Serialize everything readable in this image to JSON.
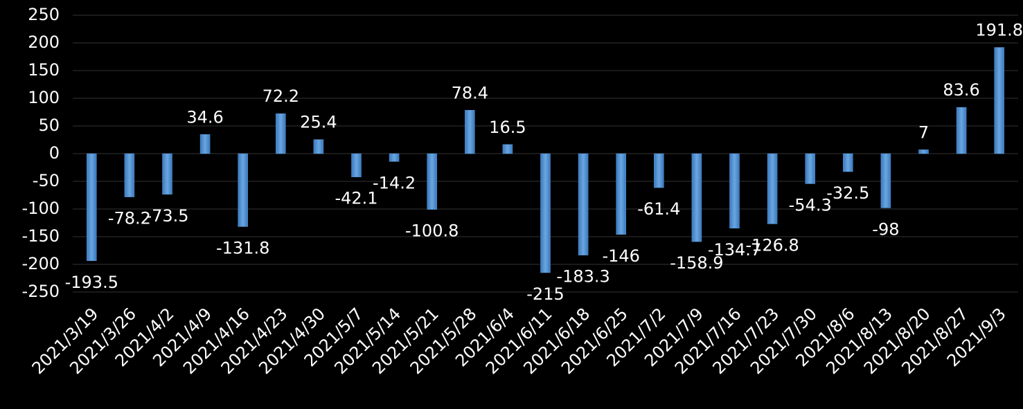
{
  "chart_data": {
    "type": "bar",
    "categories": [
      "2021/3/19",
      "2021/3/26",
      "2021/4/2",
      "2021/4/9",
      "2021/4/16",
      "2021/4/23",
      "2021/4/30",
      "2021/5/7",
      "2021/5/14",
      "2021/5/21",
      "2021/5/28",
      "2021/6/4",
      "2021/6/11",
      "2021/6/18",
      "2021/6/25",
      "2021/7/2",
      "2021/7/9",
      "2021/7/16",
      "2021/7/23",
      "2021/7/30",
      "2021/8/6",
      "2021/8/13",
      "2021/8/20",
      "2021/8/27",
      "2021/9/3"
    ],
    "values": [
      -193.5,
      -78.2,
      -73.5,
      34.6,
      -131.8,
      72.2,
      25.4,
      -42.1,
      -14.2,
      -100.8,
      78.4,
      16.5,
      -215,
      -183.3,
      -146,
      -61.4,
      -158.9,
      -134.7,
      -126.8,
      -54.3,
      -32.5,
      -98,
      7,
      83.6,
      191.8
    ],
    "color": "#5b9bd5",
    "ylim": [
      -250,
      250
    ],
    "yticks": [
      -250,
      -200,
      -150,
      -100,
      -50,
      0,
      50,
      100,
      150,
      200,
      250
    ],
    "grid": true
  }
}
